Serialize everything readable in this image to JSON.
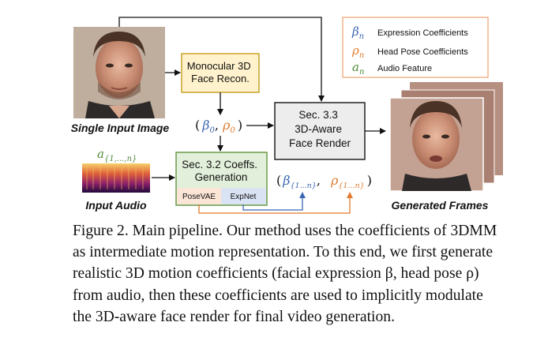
{
  "diagram": {
    "input_image_label": "Single Input Image",
    "input_audio_label": "Input Audio",
    "audio_symbol": "a",
    "audio_subscript": "{1,...,n}",
    "monocular_box": [
      "Monocular 3D",
      "Face Recon."
    ],
    "coeffs_box": [
      "Sec. 3.2 Coeffs.",
      "Generation"
    ],
    "posevae_label": "PoseVAE",
    "expnet_label": "ExpNet",
    "render_box": [
      "Sec. 3.3",
      "3D-Aware",
      "Face Render"
    ],
    "beta0": "β",
    "beta0_sub": "0",
    "rho0": "ρ",
    "rho0_sub": "0",
    "beta_seq": "β",
    "beta_seq_sub": "{1...n}",
    "rho_seq": "ρ",
    "rho_seq_sub": "{1...n}",
    "generated_label": "Generated Frames",
    "legend": [
      {
        "symbol": "β",
        "sub": "n",
        "label": "Expression Coefficients",
        "color": "#3a66b4"
      },
      {
        "symbol": "ρ",
        "sub": "n",
        "label": "Head Pose Coefficients",
        "color": "#e07b2f"
      },
      {
        "symbol": "a",
        "sub": "n",
        "label": "Audio Feature",
        "color": "#4e8b3a"
      }
    ],
    "colors": {
      "beta": "#3a66b4",
      "rho": "#e07b2f",
      "audio": "#4e8b3a",
      "monocular_fill": "#fff2cc",
      "monocular_border": "#c9a227",
      "coeffs_fill": "#e2efda",
      "coeffs_border": "#6b9a4a",
      "posevae_fill": "#fbe5d6",
      "expnet_fill": "#dae3f3",
      "render_fill": "#ededed",
      "legend_border": "#f0a070"
    }
  },
  "caption": {
    "lines": [
      "Figure 2. Main pipeline. Our method uses the coefficients of 3DMM",
      "as intermediate motion representation. To this end, we first generate",
      "realistic 3D motion coefficients (facial expression β, head pose ρ)",
      "from audio, then these coefficients are used to implicitly modulate",
      "the 3D-aware face render for final video generation."
    ]
  }
}
